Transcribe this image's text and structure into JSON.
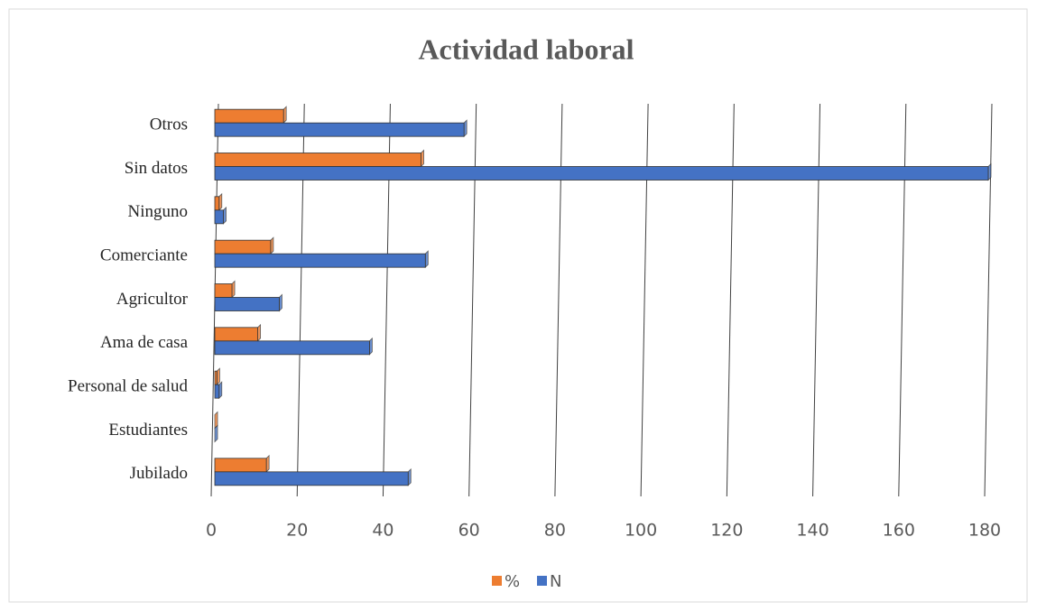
{
  "chart_data": {
    "type": "bar",
    "orientation": "horizontal",
    "title": "Actividad laboral",
    "categories": [
      "Jubilado",
      "Estudiantes",
      "Personal de salud",
      "Ama de casa",
      "Agricultor",
      "Comerciante",
      "Ninguno",
      "Sin datos",
      "Otros"
    ],
    "series": [
      {
        "name": "%",
        "color": "#ed7d31",
        "values": [
          12,
          0,
          0.5,
          10,
          4,
          13,
          1,
          48,
          16
        ]
      },
      {
        "name": "N",
        "color": "#4472c4",
        "values": [
          45,
          0,
          1,
          36,
          15,
          49,
          2,
          180,
          58
        ]
      }
    ],
    "xlim": [
      0,
      180
    ],
    "xticks": [
      0,
      20,
      40,
      60,
      80,
      100,
      120,
      140,
      160,
      180
    ],
    "grid": true,
    "legend": "bottom"
  }
}
